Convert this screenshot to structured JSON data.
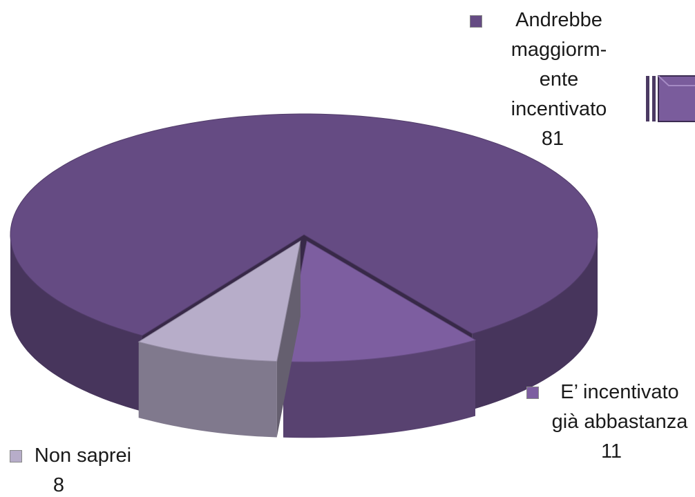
{
  "chart_data": {
    "type": "pie3d",
    "categories": [
      "Andrebbe maggiorm-ente incentivato",
      "E’ incentivato già abbastanza",
      "Non saprei"
    ],
    "values": [
      81,
      11,
      8
    ],
    "colors": [
      "#654b83",
      "#7d5ea0",
      "#b7adc9"
    ]
  }
}
